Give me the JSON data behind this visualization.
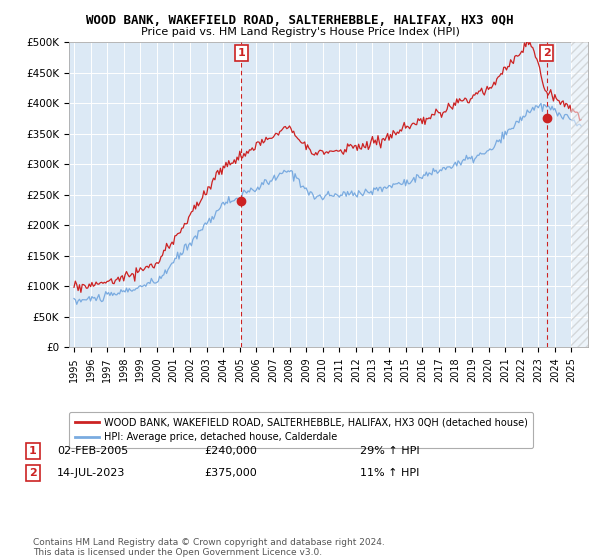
{
  "title": "WOOD BANK, WAKEFIELD ROAD, SALTERHEBBLE, HALIFAX, HX3 0QH",
  "subtitle": "Price paid vs. HM Land Registry's House Price Index (HPI)",
  "ylim": [
    0,
    500000
  ],
  "yticks": [
    0,
    50000,
    100000,
    150000,
    200000,
    250000,
    300000,
    350000,
    400000,
    450000,
    500000
  ],
  "ytick_labels": [
    "£0",
    "£50K",
    "£100K",
    "£150K",
    "£200K",
    "£250K",
    "£300K",
    "£350K",
    "£400K",
    "£450K",
    "£500K"
  ],
  "hpi_color": "#7aabe0",
  "price_color": "#cc2222",
  "annotation_color": "#cc2222",
  "sale1_year": 2005.083,
  "sale1_price": 240000,
  "sale1_label": "02-FEB-2005",
  "sale1_hpi_pct": "29% ↑ HPI",
  "sale2_year": 2023.5,
  "sale2_price": 375000,
  "sale2_label": "14-JUL-2023",
  "sale2_hpi_pct": "11% ↑ HPI",
  "legend_line1": "WOOD BANK, WAKEFIELD ROAD, SALTERHEBBLE, HALIFAX, HX3 0QH (detached house)",
  "legend_line2": "HPI: Average price, detached house, Calderdale",
  "footnote": "Contains HM Land Registry data © Crown copyright and database right 2024.\nThis data is licensed under the Open Government Licence v3.0.",
  "background_color": "#ffffff",
  "chart_bg_color": "#dce9f5",
  "grid_color": "#ffffff"
}
